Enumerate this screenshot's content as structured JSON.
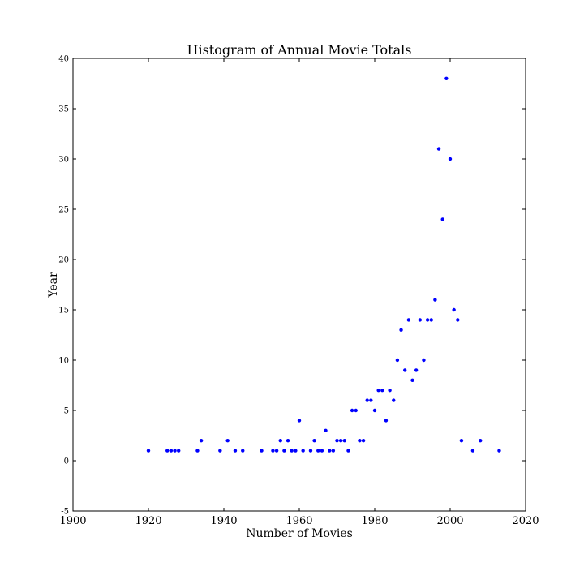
{
  "chart_data": {
    "type": "scatter",
    "title": "Histogram of Annual Movie Totals",
    "xlabel": "Number of Movies",
    "ylabel": "Year",
    "xlim": [
      1900,
      2020
    ],
    "ylim": [
      -5,
      40
    ],
    "xticks": [
      1900,
      1920,
      1940,
      1960,
      1980,
      2000,
      2020
    ],
    "yticks": [
      -5,
      0,
      5,
      10,
      15,
      20,
      25,
      30,
      35,
      40
    ],
    "grid": false,
    "marker_color": "#0000ff",
    "points": [
      [
        1920,
        1
      ],
      [
        1925,
        1
      ],
      [
        1926,
        1
      ],
      [
        1927,
        1
      ],
      [
        1928,
        1
      ],
      [
        1933,
        1
      ],
      [
        1934,
        2
      ],
      [
        1939,
        1
      ],
      [
        1941,
        2
      ],
      [
        1943,
        1
      ],
      [
        1945,
        1
      ],
      [
        1950,
        1
      ],
      [
        1953,
        1
      ],
      [
        1954,
        1
      ],
      [
        1955,
        2
      ],
      [
        1956,
        1
      ],
      [
        1957,
        2
      ],
      [
        1958,
        1
      ],
      [
        1959,
        1
      ],
      [
        1960,
        4
      ],
      [
        1961,
        1
      ],
      [
        1963,
        1
      ],
      [
        1964,
        2
      ],
      [
        1965,
        1
      ],
      [
        1966,
        1
      ],
      [
        1967,
        3
      ],
      [
        1968,
        1
      ],
      [
        1969,
        1
      ],
      [
        1970,
        2
      ],
      [
        1971,
        2
      ],
      [
        1972,
        2
      ],
      [
        1973,
        1
      ],
      [
        1974,
        5
      ],
      [
        1975,
        5
      ],
      [
        1976,
        2
      ],
      [
        1977,
        2
      ],
      [
        1978,
        6
      ],
      [
        1979,
        6
      ],
      [
        1980,
        5
      ],
      [
        1981,
        7
      ],
      [
        1982,
        7
      ],
      [
        1983,
        4
      ],
      [
        1984,
        7
      ],
      [
        1985,
        6
      ],
      [
        1986,
        10
      ],
      [
        1987,
        13
      ],
      [
        1988,
        9
      ],
      [
        1989,
        14
      ],
      [
        1990,
        8
      ],
      [
        1991,
        9
      ],
      [
        1992,
        14
      ],
      [
        1993,
        10
      ],
      [
        1994,
        14
      ],
      [
        1995,
        14
      ],
      [
        1996,
        16
      ],
      [
        1997,
        31
      ],
      [
        1998,
        24
      ],
      [
        1999,
        38
      ],
      [
        2000,
        30
      ],
      [
        2001,
        15
      ],
      [
        2002,
        14
      ],
      [
        2003,
        2
      ],
      [
        2006,
        1
      ],
      [
        2008,
        2
      ],
      [
        2013,
        1
      ]
    ]
  }
}
